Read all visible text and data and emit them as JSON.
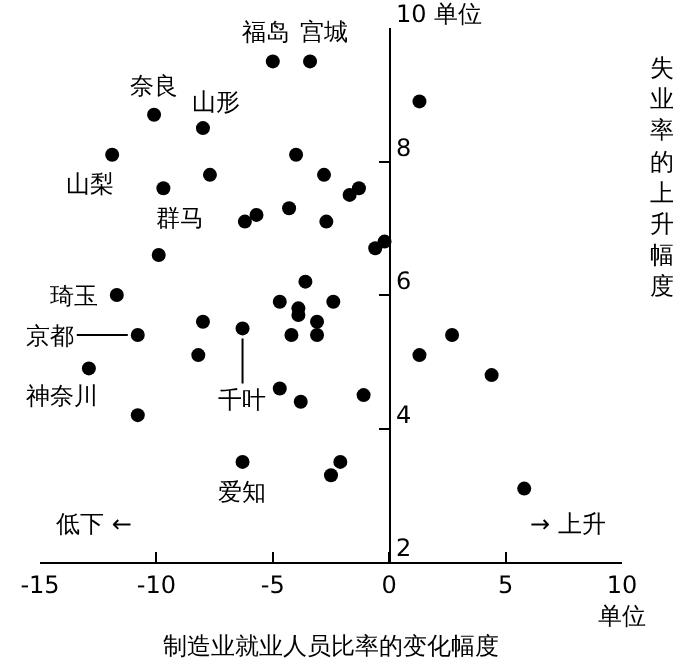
{
  "chart_data": {
    "type": "scatter",
    "xlabel": "制造业就业人员比率的变化幅度",
    "ylabel": "失业率的上升幅度",
    "xlim": [
      -15,
      10
    ],
    "xticks": [
      -15,
      -10,
      -5,
      0,
      5,
      {
        "value": 10,
        "label": "10\n单位"
      }
    ],
    "ylim": [
      2,
      10
    ],
    "yticks": [
      2,
      4,
      6,
      8,
      {
        "value": 10,
        "label": "10 单位"
      }
    ],
    "grid": false,
    "marker": "circle",
    "series": [
      {
        "color": "#000000",
        "x": [
          -5,
          -3.4,
          1.3,
          -10.1,
          -8,
          -11.9,
          -4,
          -7.7,
          -2.8,
          -9.7,
          -1.3,
          -1.7,
          -4.3,
          -5.7,
          -6.2,
          -2.7,
          -0.2,
          -0.6,
          -9.9,
          -3.6,
          -11.7,
          -4.7,
          -2.4,
          -3.9,
          -3.9,
          -3.1,
          -8,
          -6.3,
          2.7,
          -10.8,
          -4.2,
          -3.1,
          -8.2,
          1.3,
          -12.9,
          4.4,
          -4.7,
          -1.1,
          -3.8,
          -10.8,
          -6.3,
          -2.1,
          -2.5,
          5.8
        ],
        "values": [
          9.5,
          9.5,
          8.9,
          8.7,
          8.5,
          8.1,
          8.1,
          7.8,
          7.8,
          7.6,
          7.6,
          7.5,
          7.3,
          7.2,
          7.1,
          7.1,
          6.8,
          6.7,
          6.6,
          6.2,
          6,
          5.9,
          5.9,
          5.8,
          5.7,
          5.6,
          5.6,
          5.5,
          5.4,
          5.4,
          5.4,
          5.4,
          5.1,
          5.1,
          4.9,
          4.8,
          4.6,
          4.5,
          4.4,
          4.2,
          3.5,
          3.5,
          3.3,
          3.1
        ]
      }
    ],
    "annotations": [
      {
        "text": "福岛",
        "x": -5,
        "y": 9.5
      },
      {
        "text": "宫城",
        "x": -3.4,
        "y": 9.5
      },
      {
        "text": "奈良",
        "x": -10.1,
        "y": 8.7
      },
      {
        "text": "山形",
        "x": -8,
        "y": 8.5
      },
      {
        "text": "山梨",
        "x": -9.7,
        "y": 7.6
      },
      {
        "text": "群马",
        "x": -9.9,
        "y": 6.6
      },
      {
        "text": "琦玉",
        "x": -11.7,
        "y": 6
      },
      {
        "text": "京都",
        "x": -10.8,
        "y": 5.4
      },
      {
        "text": "神奈川",
        "x": -12.9,
        "y": 4.9
      },
      {
        "text": "千叶",
        "x": -6.3,
        "y": 5.5
      },
      {
        "text": "爱知",
        "x": -6.3,
        "y": 3.5
      },
      "低下 ←",
      "→ 上升"
    ]
  }
}
